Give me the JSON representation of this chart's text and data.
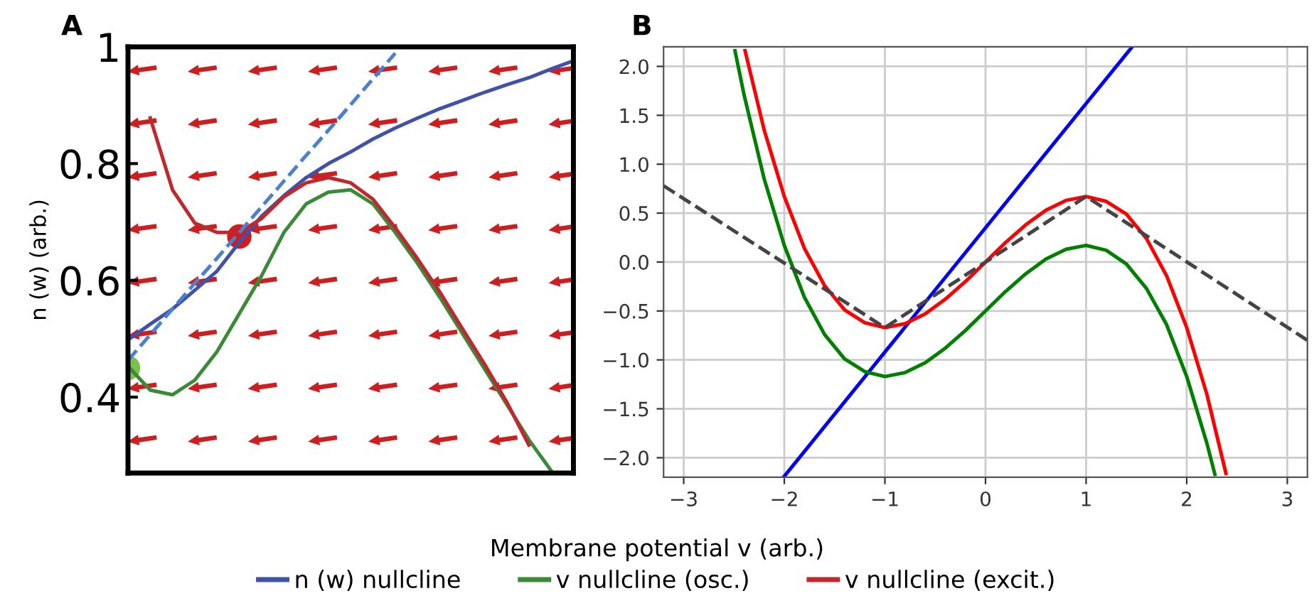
{
  "chart_data": [
    {
      "type": "line",
      "title": "A",
      "ylabel": "n (w) (arb.)",
      "xlabel": "Membrane potential v (arb.)",
      "legend": "bottom",
      "tick_labels": "y",
      "grid": false,
      "categories": [
        null,
        null,
        null,
        null,
        null,
        null,
        null,
        null,
        null,
        null,
        null,
        null,
        null,
        null,
        null,
        null,
        null,
        null,
        null,
        null,
        null
      ],
      "ylim": [
        0.27,
        1.0
      ],
      "yticks": [
        0.4,
        0.6,
        0.8,
        {
          "value": 1.0,
          "label": "1"
        }
      ],
      "series": [
        {
          "name": "n (w) nullcline",
          "color": "#3f51a8",
          "values": [
            0.498,
            0.525,
            0.551,
            0.583,
            0.616,
            0.665,
            0.71,
            0.745,
            0.776,
            0.8,
            0.82,
            0.842,
            0.861,
            0.878,
            0.894,
            0.908,
            0.922,
            0.935,
            0.947,
            0.962,
            0.976
          ]
        },
        {
          "name": "v nullcline (osc.)",
          "color": "#3a8a3a",
          "values": [
            0.453,
            0.412,
            0.404,
            0.429,
            0.478,
            0.543,
            0.608,
            0.682,
            0.731,
            0.751,
            0.755,
            0.731,
            0.682,
            0.629,
            0.571,
            0.51,
            0.449,
            0.388,
            0.327,
            0.274,
            null
          ]
        },
        {
          "name": "v nullcline (excit.)",
          "color": "#c0282d",
          "values": [
            null,
            0.878,
            0.755,
            0.698,
            0.682,
            0.682,
            0.706,
            0.743,
            0.767,
            0.776,
            0.767,
            0.739,
            0.69,
            0.637,
            0.58,
            0.518,
            0.457,
            0.392,
            0.318,
            null,
            null
          ]
        },
        {
          "color": "#4a80d0",
          "line_style": "dashed",
          "values": [
            0.463,
            0.507,
            0.551,
            0.595,
            0.638,
            0.682,
            0.726,
            0.77,
            0.814,
            0.857,
            0.901,
            0.945,
            0.989,
            null,
            null,
            null,
            null,
            null,
            null,
            null,
            null
          ]
        },
        {
          "type": "scatter",
          "marker": "circle",
          "color": "#d01c1c",
          "values": [
            null,
            null,
            null,
            null,
            null,
            0.675,
            null,
            null,
            null,
            null,
            null,
            null,
            null,
            null,
            null,
            null,
            null,
            null,
            null,
            null,
            null
          ]
        },
        {
          "type": "scatter",
          "marker": "circle",
          "color": "#7cc04a",
          "values": [
            0.45,
            null,
            null,
            null,
            null,
            null,
            null,
            null,
            null,
            null,
            null,
            null,
            null,
            null,
            null,
            null,
            null,
            null,
            null,
            null,
            null
          ]
        }
      ]
    },
    {
      "type": "line",
      "title": "B",
      "grid": true,
      "xlim": [
        -3.2,
        3.2
      ],
      "ylim": [
        -2.2,
        2.2
      ],
      "xticks": [
        {
          "value": -3,
          "label": "−3"
        },
        {
          "value": -2,
          "label": "−2"
        },
        {
          "value": -1,
          "label": "−1"
        },
        0,
        1,
        2,
        3
      ],
      "yticks": [
        {
          "value": -2.0,
          "label": "−2.0"
        },
        {
          "value": -1.5,
          "label": "−1.5"
        },
        {
          "value": -1.0,
          "label": "−1.0"
        },
        {
          "value": -0.5,
          "label": "−0.5"
        },
        {
          "value": 0.0,
          "label": "0.0"
        },
        {
          "value": 0.5,
          "label": "0.5"
        },
        {
          "value": 1.0,
          "label": "1.0"
        },
        {
          "value": 1.5,
          "label": "1.5"
        },
        {
          "value": 2.0,
          "label": "2.0"
        }
      ],
      "series": [
        {
          "color": "#0000ff",
          "x": [
            -2,
            -1,
            0,
            1,
            1.45
          ],
          "values": [
            -2.19,
            -0.92,
            0.35,
            1.62,
            2.19
          ]
        },
        {
          "color": "#008000",
          "x": [
            -2.49,
            -2.4,
            -2.2,
            -2.0,
            -1.8,
            -1.6,
            -1.4,
            -1.2,
            -1.0,
            -0.8,
            -0.6,
            -0.4,
            -0.2,
            0,
            0.2,
            0.4,
            0.6,
            0.8,
            1.0,
            1.2,
            1.4,
            1.6,
            1.8,
            2.0,
            2.2,
            2.28
          ],
          "values": [
            2.16,
            1.71,
            0.85,
            0.17,
            -0.36,
            -0.74,
            -0.99,
            -1.12,
            -1.17,
            -1.13,
            -1.03,
            -0.88,
            -0.7,
            -0.5,
            -0.3,
            -0.12,
            0.03,
            0.13,
            0.17,
            0.12,
            -0.02,
            -0.27,
            -0.64,
            -1.17,
            -1.85,
            -2.17
          ]
        },
        {
          "color": "#ff0000",
          "x": [
            -2.39,
            -2.2,
            -2.0,
            -1.8,
            -1.6,
            -1.4,
            -1.2,
            -1.0,
            -0.8,
            -0.6,
            -0.4,
            -0.2,
            0,
            0.2,
            0.4,
            0.6,
            0.8,
            1.0,
            1.2,
            1.4,
            1.6,
            1.8,
            2.0,
            2.2,
            2.39
          ],
          "values": [
            2.16,
            1.35,
            0.67,
            0.14,
            -0.24,
            -0.49,
            -0.62,
            -0.67,
            -0.63,
            -0.53,
            -0.38,
            -0.2,
            0,
            0.2,
            0.38,
            0.53,
            0.63,
            0.67,
            0.62,
            0.49,
            0.24,
            -0.14,
            -0.67,
            -1.35,
            -2.16
          ]
        },
        {
          "color": "#444444",
          "line_style": "dashed",
          "x": [
            -3.2,
            -1,
            1,
            3.2
          ],
          "values": [
            0.78,
            -0.67,
            0.67,
            -0.8
          ]
        }
      ]
    }
  ]
}
